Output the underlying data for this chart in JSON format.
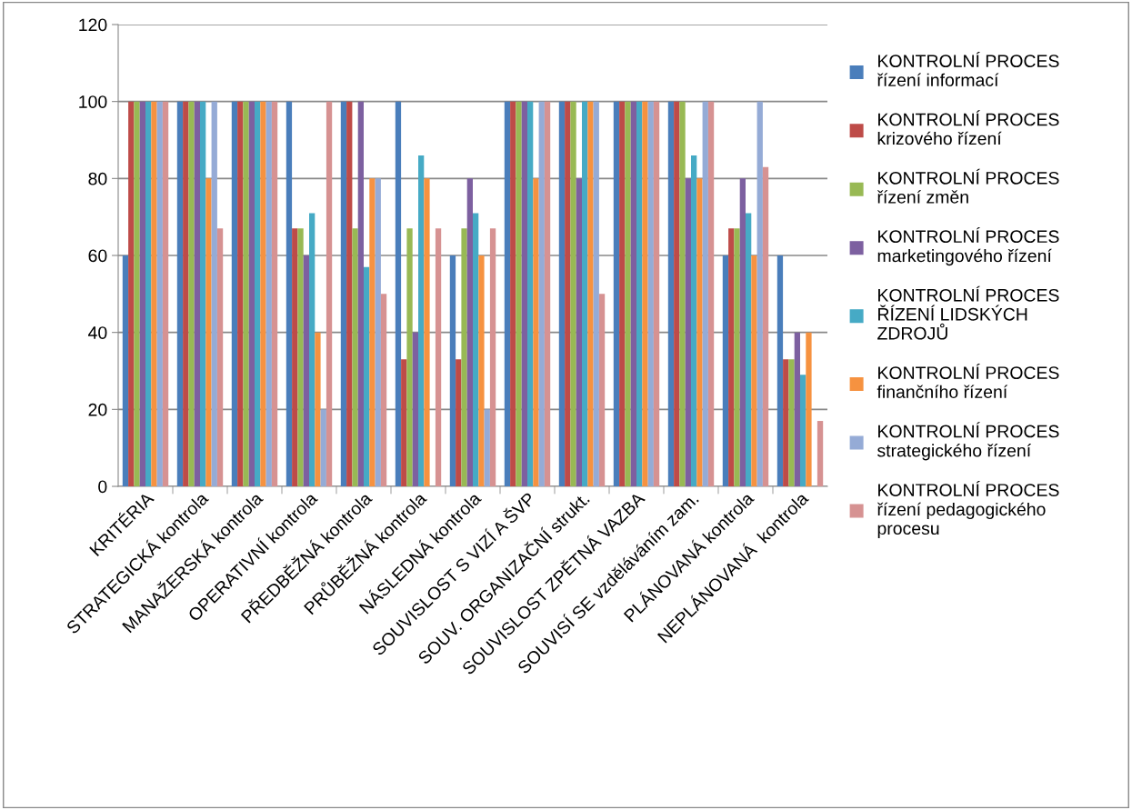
{
  "chart_data": {
    "type": "bar",
    "categories": [
      "KRITÉRIA",
      "STRATEGICKÁ kontrola",
      "MANAŽERSKÁ kontrola",
      "OPERATIVNÍ kontrola",
      "PŘEDBĚŽNÁ kontrola",
      "PRŮBĚŽNÁ kontrola",
      "NÁSLEDNÁ kontrola",
      "SOUVISLOST S VIZÍ A ŠVP",
      "SOUV. ORGANIZAČNÍ strukt.",
      "SOUVISLOST ZPĚTNÁ VAZBA",
      "SOUVISÍ SE vzděláváním zam.",
      "PLÁNOVANÁ kontrola",
      "NEPLÁNOVANÁ  kontrola"
    ],
    "series": [
      {
        "name": "KONTROLNÍ PROCES\nřízení informací",
        "color": "#4a7ebb",
        "values": [
          60,
          100,
          100,
          100,
          100,
          100,
          60,
          100,
          100,
          100,
          100,
          60,
          60
        ]
      },
      {
        "name": "KONTROLNÍ PROCES\nkrizového řízení",
        "color": "#be4b48",
        "values": [
          100,
          100,
          100,
          67,
          100,
          33,
          33,
          100,
          100,
          100,
          100,
          67,
          33
        ]
      },
      {
        "name": "KONTROLNÍ PROCES\nřízení změn",
        "color": "#98b954",
        "values": [
          100,
          100,
          100,
          67,
          67,
          67,
          67,
          100,
          100,
          100,
          100,
          67,
          33
        ]
      },
      {
        "name": "KONTROLNÍ PROCES\nmarketingového řízení",
        "color": "#7d60a0",
        "values": [
          100,
          100,
          100,
          60,
          100,
          40,
          80,
          100,
          80,
          100,
          80,
          80,
          40
        ]
      },
      {
        "name": "KONTROLNÍ PROCES\nŘÍZENÍ LIDSKÝCH\nZDROJŮ",
        "color": "#46aac5",
        "values": [
          100,
          100,
          100,
          71,
          57,
          86,
          71,
          100,
          100,
          100,
          86,
          71,
          29
        ]
      },
      {
        "name": "KONTROLNÍ PROCES\nfinančního řízení",
        "color": "#f69240",
        "values": [
          100,
          80,
          100,
          40,
          80,
          80,
          60,
          80,
          100,
          100,
          80,
          60,
          40
        ]
      },
      {
        "name": "KONTROLNÍ PROCES\nstrategického řízení",
        "color": "#95abd6",
        "values": [
          100,
          100,
          100,
          20,
          80,
          null,
          20,
          100,
          100,
          100,
          100,
          100,
          null
        ]
      },
      {
        "name": "KONTROLNÍ PROCES\nřízení pedagogického\nprocesu",
        "color": "#d69292",
        "values": [
          100,
          67,
          100,
          100,
          50,
          67,
          67,
          100,
          50,
          100,
          100,
          83,
          17
        ]
      }
    ],
    "ylim": [
      0,
      120
    ],
    "yticks": [
      0,
      20,
      40,
      60,
      80,
      100,
      120
    ],
    "grid": "y",
    "legend": "right"
  }
}
